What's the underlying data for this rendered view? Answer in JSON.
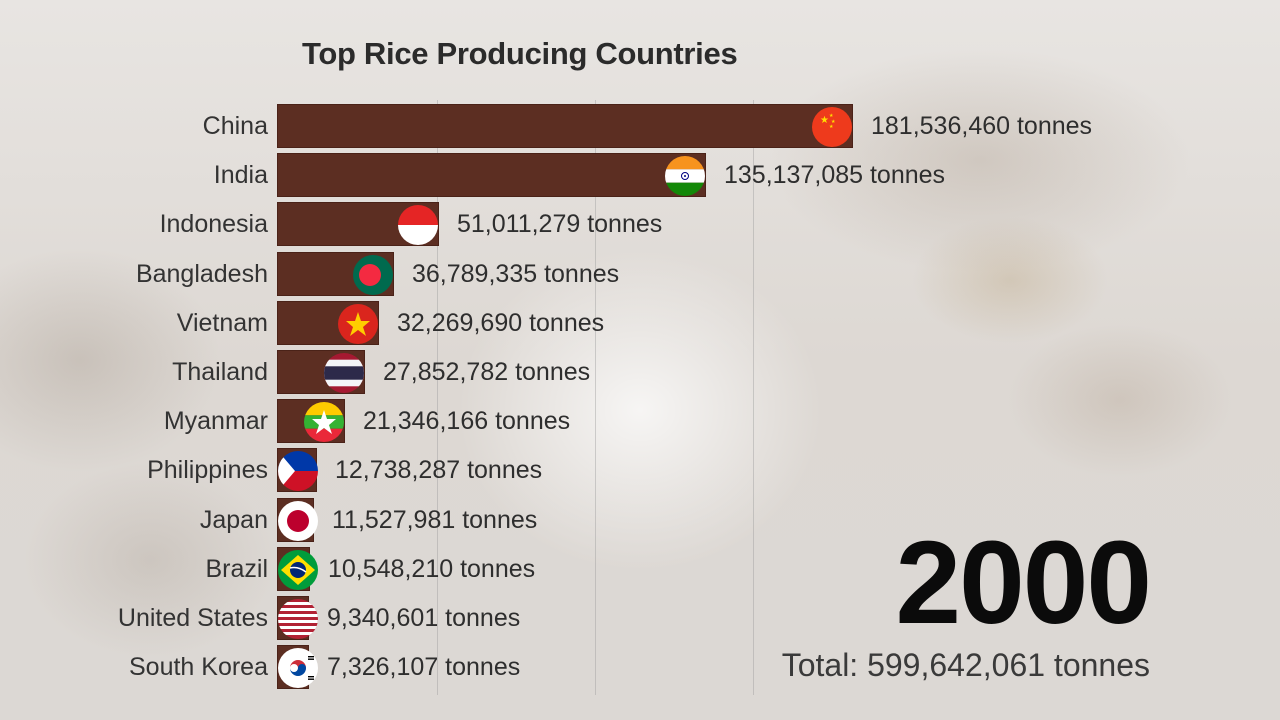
{
  "header": {
    "title": "Top Rice Producing Countries"
  },
  "footer": {
    "year": "2000",
    "total_label": "Total: 599,642,061 tonnes"
  },
  "colors": {
    "bar": "#5c2e22",
    "background": "#e2ded9",
    "text": "#2e2e2e"
  },
  "rows": [
    {
      "country": "China",
      "value_label": "181,536,460 tonnes",
      "flag": "china-flag"
    },
    {
      "country": "India",
      "value_label": "135,137,085 tonnes",
      "flag": "india-flag"
    },
    {
      "country": "Indonesia",
      "value_label": "51,011,279 tonnes",
      "flag": "indonesia-flag"
    },
    {
      "country": "Bangladesh",
      "value_label": "36,789,335 tonnes",
      "flag": "bangladesh-flag"
    },
    {
      "country": "Vietnam",
      "value_label": "32,269,690 tonnes",
      "flag": "vietnam-flag"
    },
    {
      "country": "Thailand",
      "value_label": "27,852,782 tonnes",
      "flag": "thailand-flag"
    },
    {
      "country": "Myanmar",
      "value_label": "21,346,166 tonnes",
      "flag": "myanmar-flag"
    },
    {
      "country": "Philippines",
      "value_label": "12,738,287 tonnes",
      "flag": "philippines-flag"
    },
    {
      "country": "Japan",
      "value_label": "11,527,981 tonnes",
      "flag": "japan-flag"
    },
    {
      "country": "Brazil",
      "value_label": "10,548,210 tonnes",
      "flag": "brazil-flag"
    },
    {
      "country": "United States",
      "value_label": "9,340,601 tonnes",
      "flag": "usa-flag"
    },
    {
      "country": "South Korea",
      "value_label": "7,326,107 tonnes",
      "flag": "south-korea-flag"
    }
  ],
  "chart_data": {
    "type": "bar",
    "orientation": "horizontal",
    "title": "Top Rice Producing Countries",
    "subtitle": "2000",
    "annotation": "Total: 599,642,061 tonnes",
    "xlabel": "",
    "ylabel": "",
    "unit": "tonnes",
    "categories": [
      "China",
      "India",
      "Indonesia",
      "Bangladesh",
      "Vietnam",
      "Thailand",
      "Myanmar",
      "Philippines",
      "Japan",
      "Brazil",
      "United States",
      "South Korea"
    ],
    "values": [
      181536460,
      135137085,
      51011279,
      36789335,
      32269690,
      27852782,
      21346166,
      12738287,
      11527981,
      10548210,
      9340601,
      7326107
    ],
    "gridlines_x": [
      50000000,
      100000000,
      150000000
    ],
    "xlim": [
      0,
      181536460
    ],
    "grid": true,
    "legend": "none",
    "bar_color": "#5c2e22"
  }
}
